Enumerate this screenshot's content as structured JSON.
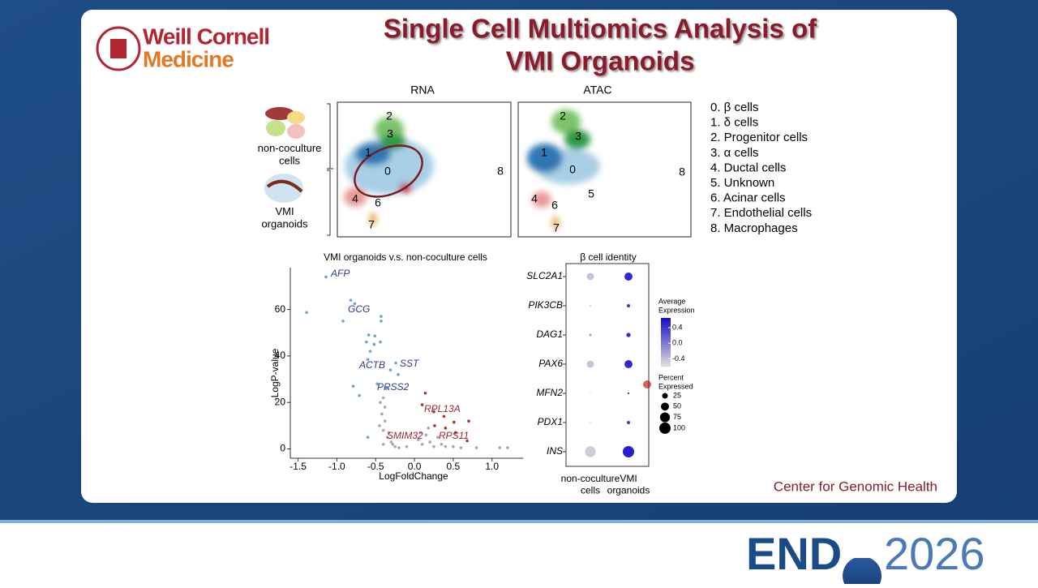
{
  "slide": {
    "title_lines": [
      "Single Cell Multiomics Analysis of",
      "VMI Organoids"
    ],
    "logo_lines": [
      "Weill Cornell",
      "Medicine"
    ],
    "footer": "Center for Genomic Health",
    "brand": [
      "END",
      "2026"
    ],
    "left_labels": [
      "non-coculture cells",
      "VMI organoids"
    ],
    "cluster_legend": [
      "0. β cells",
      "1. δ cells",
      "2. Progenitor cells",
      "3. α cells",
      "4. Ductal cells",
      "5. Unknown",
      "6. Acinar cells",
      "7. Endothelial cells",
      "8. Macrophages"
    ]
  },
  "umap": {
    "titles": [
      "RNA",
      "ATAC"
    ],
    "rna_labels": [
      "2",
      "3",
      "1",
      "0",
      "8",
      "4",
      "6",
      "7"
    ],
    "atac_labels": [
      "2",
      "3",
      "1",
      "0",
      "8",
      "5",
      "4",
      "6",
      "7"
    ]
  },
  "chart_data": [
    {
      "type": "scatter",
      "title": "VMI organoids v.s. non-coculture cells",
      "x_label": "LogFoldChange",
      "y_label": "-LogP-value",
      "xlim": [
        -1.6,
        1.4
      ],
      "ylim": [
        -4,
        78
      ],
      "xticks": [
        -1.5,
        {
          "value": -1,
          "label": "-1.0"
        },
        -0.5,
        {
          "value": 0,
          "label": "0.0"
        },
        0.5,
        {
          "value": 1,
          "label": "1.0"
        }
      ],
      "yticks": [
        0,
        20,
        40,
        60
      ],
      "series": [
        {
          "color": "#6aa6c8",
          "x": [
            -1.14,
            -1.39,
            -0.92,
            -0.82,
            -0.77,
            -0.43,
            -0.43,
            -0.59,
            -0.62,
            -0.51,
            -0.52,
            -0.44,
            -0.57,
            -0.6,
            -0.24,
            -0.31,
            -0.21,
            -0.79,
            -0.71,
            -0.36,
            -0.48,
            -0.6
          ],
          "values": [
            74,
            58.7,
            55,
            64,
            62.5,
            57,
            55,
            49,
            46,
            48.6,
            45,
            46,
            42,
            38.5,
            37,
            34,
            32,
            27,
            23,
            26,
            28,
            5
          ]
        },
        {
          "color": "#b03030",
          "x": [
            0.14,
            0.1,
            0.25,
            0.38,
            0.51,
            0.7,
            0.53,
            0.4,
            0.26,
            0.68
          ],
          "values": [
            24,
            19,
            16,
            14,
            11.5,
            12,
            7,
            9,
            10,
            3.5
          ]
        },
        {
          "color": "#a8a8a8",
          "x": [
            -0.45,
            -0.4,
            -0.38,
            -0.35,
            -0.3,
            -0.42,
            -0.38,
            -0.33,
            -0.28,
            -0.25,
            -0.4,
            0.05,
            0.1,
            0.15,
            0.2,
            0.25,
            0.3,
            0.35,
            0.4,
            0.18,
            0.08,
            -0.44,
            -0.4,
            0.8,
            1.1,
            1.2,
            0.6,
            0.5,
            -0.2,
            -0.1
          ],
          "values": [
            10,
            8,
            12,
            5,
            3,
            15,
            18,
            7,
            2,
            1,
            2,
            4,
            2,
            6,
            3,
            1,
            5,
            2,
            1,
            9,
            7,
            20,
            22,
            0.5,
            0.5,
            0.5,
            0.5,
            1,
            0.5,
            1
          ]
        }
      ],
      "annotations": [
        {
          "text": "AFP",
          "color": "#2d3a8c"
        },
        {
          "text": "GCG",
          "color": "#2d3a8c"
        },
        {
          "text": "ACTB",
          "color": "#2d3a8c"
        },
        {
          "text": "SST",
          "color": "#2d3a8c"
        },
        {
          "text": "PRSS2",
          "color": "#2d3a8c"
        },
        {
          "text": "RPL13A",
          "color": "#9b2335"
        },
        {
          "text": "SMIM32",
          "color": "#9b2335"
        },
        {
          "text": "RPS11",
          "color": "#9b2335"
        }
      ]
    },
    {
      "type": "dot",
      "title": "β cell identity",
      "categories": [
        "SLC2A1",
        "PIK3CB",
        "DAG1",
        "PAX6",
        "MFN2",
        "PDX1",
        "INS"
      ],
      "series": [
        {
          "name": "non-coculture cells",
          "values": [
            40,
            2,
            5,
            40,
            1,
            1,
            90
          ],
          "expression": [
            -0.45,
            -0.4,
            -0.3,
            -0.45,
            -0.4,
            -0.4,
            -0.5
          ]
        },
        {
          "name": "VMI organoids",
          "values": [
            50,
            8,
            15,
            50,
            3,
            8,
            100
          ],
          "expression": [
            0.5,
            0.45,
            0.45,
            0.5,
            0.35,
            0.4,
            0.55
          ]
        }
      ],
      "color_title": [
        "Average",
        "Expression"
      ],
      "clim": [
        -0.6,
        0.65
      ],
      "colors": [
        "#dcdcdc",
        "#1a10c8"
      ],
      "cticks": [
        {
          "value": 0.4,
          "label": "0.4"
        },
        {
          "value": 0,
          "label": "0.0"
        },
        {
          "value": -0.4,
          "label": "-0.4"
        }
      ],
      "size_title": [
        "Percent",
        "Expressed"
      ],
      "size_ticks": [
        25,
        50,
        75,
        100
      ]
    }
  ]
}
